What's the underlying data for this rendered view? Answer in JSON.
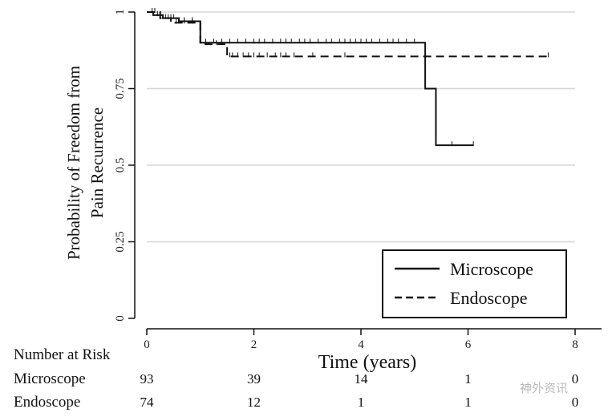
{
  "chart_data": {
    "type": "line",
    "subtype": "kaplan-meier",
    "ylabel_lines": [
      "Probability of Freedom from",
      "Pain Recurrence"
    ],
    "xlabel": "Time (years)",
    "xlim": [
      0,
      8
    ],
    "ylim": [
      0,
      1
    ],
    "x_ticks": [
      0,
      2,
      4,
      6,
      8
    ],
    "y_ticks": [
      0,
      0.25,
      0.5,
      0.75,
      1
    ],
    "y_tick_labels": [
      "0",
      "0.25",
      "0.5",
      "0.75",
      "1"
    ],
    "grid": "horizontal",
    "legend_position": "bottom-right",
    "series": [
      {
        "name": "Microscope",
        "style": "solid",
        "color": "#111111",
        "steps": [
          [
            0,
            1.0
          ],
          [
            0.12,
            0.99
          ],
          [
            0.3,
            0.98
          ],
          [
            0.6,
            0.97
          ],
          [
            1.0,
            0.9
          ],
          [
            5.2,
            0.75
          ],
          [
            5.4,
            0.565
          ],
          [
            6.1,
            0.565
          ]
        ],
        "censor_times": [
          0.1,
          0.2,
          0.25,
          0.35,
          0.45,
          0.5,
          0.7,
          0.85,
          1.1,
          1.25,
          1.4,
          1.55,
          1.7,
          1.85,
          2.0,
          2.1,
          2.2,
          2.35,
          2.5,
          2.6,
          2.7,
          2.85,
          2.95,
          3.05,
          3.2,
          3.35,
          3.45,
          3.6,
          3.7,
          3.8,
          3.9,
          4.0,
          4.1,
          4.2,
          4.35,
          4.5,
          4.6,
          4.7,
          4.85,
          5.0,
          5.7,
          6.1
        ]
      },
      {
        "name": "Endoscope",
        "style": "dashed",
        "color": "#111111",
        "steps": [
          [
            0,
            1.0
          ],
          [
            0.25,
            0.98
          ],
          [
            0.45,
            0.965
          ],
          [
            1.0,
            0.895
          ],
          [
            1.5,
            0.855
          ],
          [
            7.5,
            0.855
          ]
        ],
        "censor_times": [
          0.15,
          0.3,
          0.4,
          0.55,
          0.7,
          0.85,
          1.1,
          1.3,
          1.55,
          1.6,
          1.7,
          1.8,
          1.9,
          2.0,
          2.1,
          2.25,
          2.4,
          2.5,
          2.6,
          2.75,
          3.1,
          3.7,
          7.5
        ]
      }
    ],
    "risk_table": {
      "title": "Number at Risk",
      "times": [
        0,
        2,
        4,
        6,
        8
      ],
      "rows": [
        {
          "label": "Microscope",
          "values": [
            "93",
            "39",
            "14",
            "1",
            "0"
          ]
        },
        {
          "label": "Endoscope",
          "values": [
            "74",
            "12",
            "1",
            "1",
            "0"
          ]
        }
      ]
    }
  },
  "watermark": "神外资讯"
}
